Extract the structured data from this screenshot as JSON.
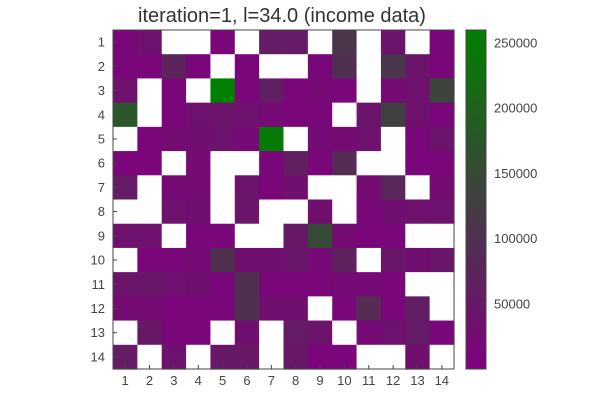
{
  "chart_data": {
    "type": "heatmap",
    "title": "iteration=1, l=34.0 (income data)",
    "x_ticks": [
      "1",
      "2",
      "3",
      "4",
      "5",
      "6",
      "7",
      "8",
      "9",
      "10",
      "11",
      "12",
      "13",
      "14"
    ],
    "y_ticks": [
      "1",
      "2",
      "3",
      "4",
      "5",
      "6",
      "7",
      "8",
      "9",
      "10",
      "11",
      "12",
      "13",
      "14"
    ],
    "colorbar": {
      "min": 0,
      "max": 260000,
      "ticks": [
        {
          "value": 50000,
          "label": "50000"
        },
        {
          "value": 100000,
          "label": "100000"
        },
        {
          "value": 150000,
          "label": "150000"
        },
        {
          "value": 200000,
          "label": "200000"
        },
        {
          "value": 250000,
          "label": "250000"
        }
      ],
      "colors": [
        "#800080",
        "#404040",
        "#008000"
      ]
    },
    "missing_color": "#ffffff",
    "values": [
      [
        15000,
        35000,
        null,
        null,
        15000,
        null,
        55000,
        55000,
        null,
        110000,
        null,
        40000,
        null,
        15000
      ],
      [
        15000,
        10000,
        75000,
        15000,
        null,
        15000,
        null,
        null,
        15000,
        100000,
        null,
        110000,
        40000,
        15000
      ],
      [
        35000,
        null,
        15000,
        null,
        260000,
        15000,
        60000,
        15000,
        20000,
        15000,
        null,
        25000,
        35000,
        140000
      ],
      [
        175000,
        null,
        15000,
        35000,
        40000,
        35000,
        20000,
        15000,
        15000,
        null,
        40000,
        130000,
        35000,
        15000
      ],
      [
        null,
        15000,
        25000,
        30000,
        35000,
        20000,
        250000,
        null,
        20000,
        25000,
        35000,
        null,
        15000,
        40000
      ],
      [
        10000,
        10000,
        null,
        25000,
        null,
        null,
        15000,
        60000,
        15000,
        90000,
        null,
        null,
        15000,
        15000
      ],
      [
        55000,
        null,
        20000,
        25000,
        null,
        40000,
        15000,
        30000,
        null,
        null,
        25000,
        80000,
        null,
        25000
      ],
      [
        null,
        null,
        35000,
        30000,
        null,
        45000,
        null,
        null,
        30000,
        null,
        15000,
        30000,
        35000,
        35000
      ],
      [
        35000,
        35000,
        null,
        15000,
        15000,
        null,
        null,
        50000,
        150000,
        25000,
        15000,
        15000,
        null,
        null
      ],
      [
        null,
        15000,
        15000,
        20000,
        100000,
        30000,
        30000,
        45000,
        20000,
        70000,
        null,
        45000,
        30000,
        45000
      ],
      [
        40000,
        45000,
        35000,
        30000,
        15000,
        100000,
        15000,
        15000,
        15000,
        20000,
        20000,
        15000,
        null,
        null
      ],
      [
        25000,
        25000,
        15000,
        15000,
        15000,
        100000,
        30000,
        30000,
        null,
        15000,
        90000,
        15000,
        60000,
        null
      ],
      [
        null,
        50000,
        15000,
        15000,
        null,
        30000,
        null,
        55000,
        40000,
        null,
        20000,
        35000,
        55000,
        15000
      ],
      [
        55000,
        null,
        35000,
        null,
        50000,
        50000,
        null,
        50000,
        10000,
        10000,
        null,
        null,
        30000,
        null
      ]
    ]
  }
}
